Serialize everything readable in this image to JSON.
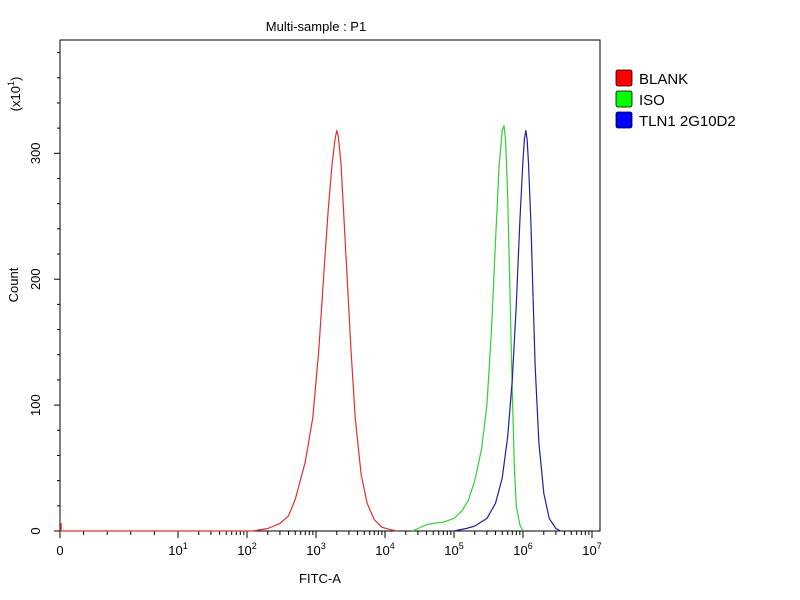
{
  "chart_data": {
    "type": "line",
    "title": "Multi-sample : P1",
    "xlabel": "FITC-A",
    "ylabel": "Count",
    "y_multiplier_label": "(x10",
    "y_multiplier_exp": "1",
    "x_scale": "log",
    "xlim": [
      0,
      10000000
    ],
    "ylim": [
      0,
      390
    ],
    "x_ticks": [
      {
        "value": 0,
        "base": "0",
        "exp": ""
      },
      {
        "value": 10,
        "base": "10",
        "exp": "1"
      },
      {
        "value": 100,
        "base": "10",
        "exp": "2"
      },
      {
        "value": 1000,
        "base": "10",
        "exp": "3"
      },
      {
        "value": 10000,
        "base": "10",
        "exp": "4"
      },
      {
        "value": 100000,
        "base": "10",
        "exp": "5"
      },
      {
        "value": 1000000,
        "base": "10",
        "exp": "6"
      },
      {
        "value": 10000000,
        "base": "10",
        "exp": "7"
      }
    ],
    "y_ticks": [
      {
        "value": 0,
        "label": "0"
      },
      {
        "value": 100,
        "label": "100"
      },
      {
        "value": 200,
        "label": "200"
      },
      {
        "value": 300,
        "label": "300"
      }
    ],
    "grid": false,
    "legend": {
      "position": "top-right",
      "entries": [
        {
          "name": "BLANK",
          "color": "#ff0000"
        },
        {
          "name": "ISO",
          "color": "#00ff00"
        },
        {
          "name": "TLN1 2G10D2",
          "color": "#0000ff"
        }
      ]
    },
    "series": [
      {
        "name": "BLANK",
        "color": "#e03030",
        "x": [
          0,
          120,
          200,
          300,
          400,
          500,
          700,
          900,
          1100,
          1300,
          1500,
          1700,
          1900,
          2000,
          2100,
          2300,
          2500,
          2800,
          3200,
          3700,
          4500,
          5500,
          7000,
          9000,
          12000,
          15000
        ],
        "y": [
          0,
          0,
          2,
          6,
          12,
          25,
          55,
          90,
          145,
          205,
          255,
          290,
          312,
          318,
          314,
          292,
          255,
          205,
          145,
          90,
          45,
          22,
          9,
          3,
          1,
          0
        ]
      },
      {
        "name": "ISO",
        "color": "#30d030",
        "x": [
          25000,
          30000,
          40000,
          50000,
          70000,
          100000,
          130000,
          160000,
          200000,
          250000,
          300000,
          350000,
          400000,
          450000,
          500000,
          530000,
          560000,
          600000,
          650000,
          700000,
          750000,
          800000,
          900000,
          1000000
        ],
        "y": [
          0,
          2,
          5,
          6,
          7,
          10,
          16,
          24,
          40,
          65,
          100,
          160,
          230,
          290,
          318,
          322,
          310,
          265,
          185,
          110,
          50,
          20,
          5,
          0
        ]
      },
      {
        "name": "TLN1 2G10D2",
        "color": "#2020a0",
        "x": [
          100000,
          150000,
          200000,
          300000,
          400000,
          500000,
          600000,
          700000,
          800000,
          900000,
          1000000,
          1050000,
          1100000,
          1150000,
          1200000,
          1300000,
          1400000,
          1500000,
          1700000,
          2000000,
          2400000,
          3000000,
          3500000
        ],
        "y": [
          0,
          2,
          4,
          10,
          22,
          42,
          75,
          120,
          180,
          245,
          295,
          312,
          318,
          310,
          292,
          245,
          185,
          130,
          70,
          30,
          10,
          2,
          0
        ]
      }
    ]
  }
}
